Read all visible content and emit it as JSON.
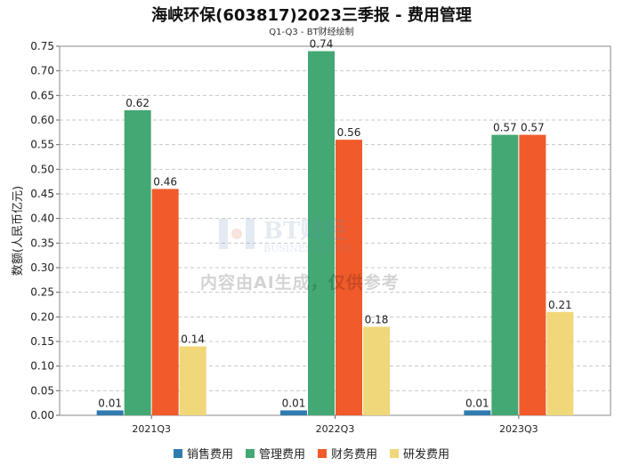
{
  "chart_data": {
    "type": "bar",
    "title": "海峡环保(603817)2023三季报 - 费用管理",
    "subtitle": "Q1-Q3 - BT财经绘制",
    "ylabel": "数额(人民币亿元)",
    "xlabel": "",
    "ylim": [
      0,
      0.75
    ],
    "yticks": [
      "0.00",
      "0.05",
      "0.10",
      "0.15",
      "0.20",
      "0.25",
      "0.30",
      "0.35",
      "0.40",
      "0.45",
      "0.50",
      "0.55",
      "0.60",
      "0.65",
      "0.70",
      "0.75"
    ],
    "categories": [
      "2021Q3",
      "2022Q3",
      "2023Q3"
    ],
    "series": [
      {
        "name": "销售费用",
        "color": "#2f7bb0",
        "values": [
          0.01,
          0.01,
          0.01
        ],
        "labels": [
          "0.01",
          "0.01",
          "0.01"
        ]
      },
      {
        "name": "管理费用",
        "color": "#43a873",
        "values": [
          0.62,
          0.74,
          0.57
        ],
        "labels": [
          "0.62",
          "0.74",
          "0.57"
        ]
      },
      {
        "name": "财务费用",
        "color": "#f15a2b",
        "values": [
          0.46,
          0.56,
          0.57
        ],
        "labels": [
          "0.46",
          "0.56",
          "0.57"
        ]
      },
      {
        "name": "研发费用",
        "color": "#f0d77a",
        "values": [
          0.14,
          0.18,
          0.21
        ],
        "labels": [
          "0.14",
          "0.18",
          "0.21"
        ]
      }
    ],
    "grid": true,
    "legend_position": "bottom"
  },
  "watermark": {
    "brand_cn": "BT财经",
    "brand_en": "BUSINESSTIMES",
    "notice": "内容由AI生成，仅供参考"
  }
}
